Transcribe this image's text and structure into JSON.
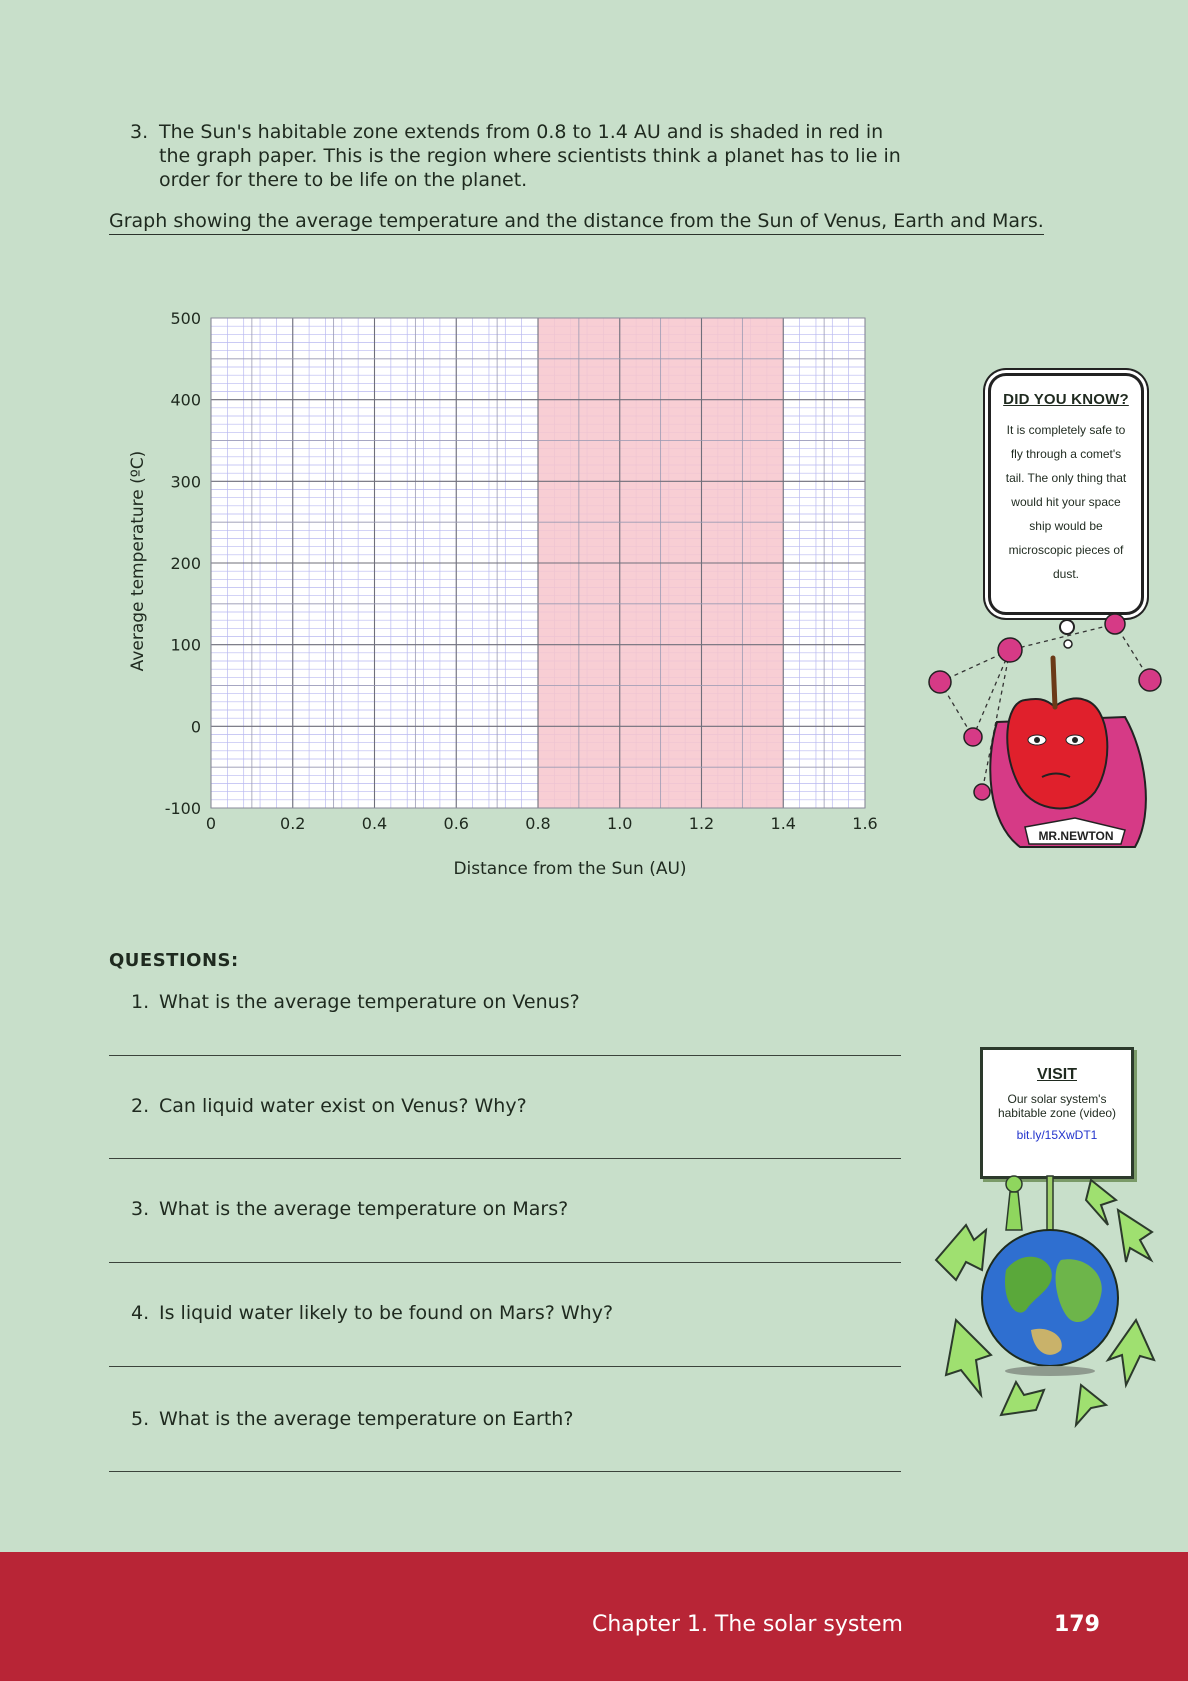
{
  "intro": {
    "number": "3.",
    "text": "The Sun's habitable zone extends from 0.8 to 1.4 AU and is shaded in red in the graph paper. This is the region where scientists think a planet has to lie in order for there to be life on the planet."
  },
  "graph_caption": "Graph showing the average temperature and the distance from the Sun of Venus, Earth and Mars.",
  "chart_data": {
    "type": "scatter",
    "title": "",
    "xlabel": "Distance from the Sun (AU)",
    "ylabel": "Average temperature (ºC)",
    "xlim": [
      0,
      1.6
    ],
    "ylim": [
      -100,
      500
    ],
    "x_ticks": [
      "0",
      "0.2",
      "0.4",
      "0.6",
      "0.8",
      "1.0",
      "1.2",
      "1.4",
      "1.6"
    ],
    "y_ticks": [
      "-100",
      "0",
      "100",
      "200",
      "300",
      "400",
      "500"
    ],
    "shaded_region": {
      "x_from": 0.8,
      "x_to": 1.4,
      "color": "#f7c6cc"
    },
    "grid": true,
    "series": []
  },
  "did_you_know": {
    "heading": "DID YOU KNOW?",
    "body": "It is completely safe to fly through a comet's tail. The only thing that would hit your space ship would be microscopic pieces of dust."
  },
  "newton_label": "MR.NEWTON",
  "questions_title": "QUESTIONS:",
  "questions": [
    {
      "number": "1.",
      "text": "What is the average temperature on Venus?"
    },
    {
      "number": "2.",
      "text": "Can liquid water exist on Venus? Why?"
    },
    {
      "number": "3.",
      "text": "What is the average temperature on Mars?"
    },
    {
      "number": "4.",
      "text": "Is liquid water likely to be found on Mars? Why?"
    },
    {
      "number": "5.",
      "text": "What is the average temperature on Earth?"
    }
  ],
  "visit": {
    "heading": "VISIT",
    "body": "Our solar system's habitable zone (video)",
    "link": "bit.ly/15XwDT1"
  },
  "footer": {
    "chapter": "Chapter 1.   The solar system",
    "page_number": "179"
  }
}
